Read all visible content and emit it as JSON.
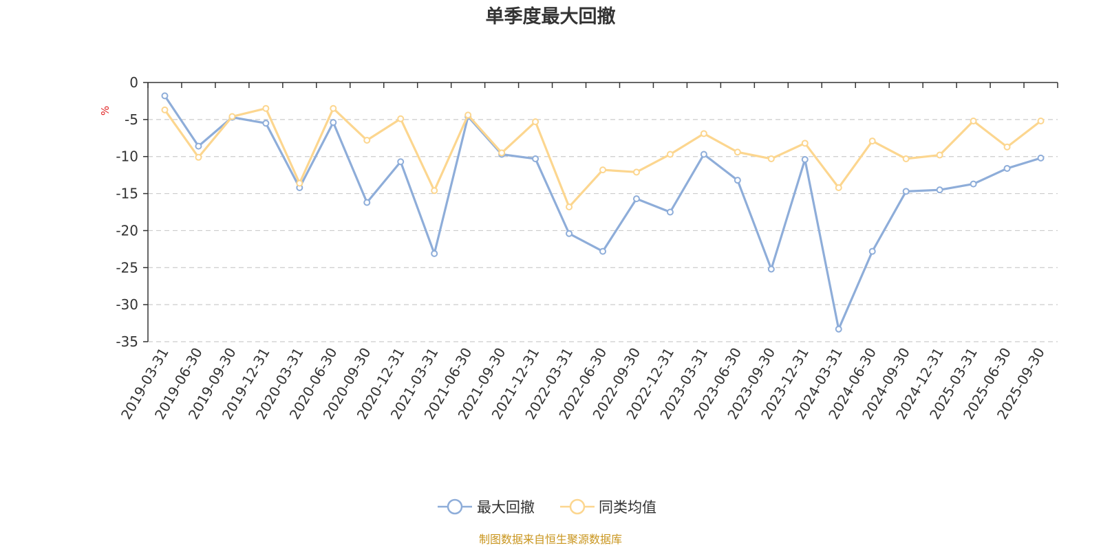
{
  "chart_data": {
    "type": "line",
    "title": "单季度最大回撤",
    "ylabel": "%",
    "xlabel": "",
    "ylim": [
      -35,
      0
    ],
    "yticks": [
      0,
      -5,
      -10,
      -15,
      -20,
      -25,
      -30,
      -35
    ],
    "grid": true,
    "legend_position": "bottom-center",
    "categories": [
      "2019-03-31",
      "2019-06-30",
      "2019-09-30",
      "2019-12-31",
      "2020-03-31",
      "2020-06-30",
      "2020-09-30",
      "2020-12-31",
      "2021-03-31",
      "2021-06-30",
      "2021-09-30",
      "2021-12-31",
      "2022-03-31",
      "2022-06-30",
      "2022-09-30",
      "2022-12-31",
      "2023-03-31",
      "2023-06-30",
      "2023-09-30",
      "2023-12-31",
      "2024-03-31",
      "2024-06-30",
      "2024-09-30",
      "2024-12-31",
      "2025-03-31",
      "2025-06-30",
      "2025-09-30"
    ],
    "series": [
      {
        "name": "最大回撤",
        "color": "#8eadd9",
        "values": [
          -1.8,
          -8.6,
          -4.7,
          -5.5,
          -14.2,
          -5.4,
          -16.2,
          -10.7,
          -23.1,
          -4.6,
          -9.7,
          -10.3,
          -20.4,
          -22.8,
          -15.7,
          -17.5,
          -9.7,
          -13.2,
          -25.2,
          -10.4,
          -33.3,
          -22.8,
          -14.7,
          -14.5,
          -13.7,
          -11.6,
          -10.2
        ]
      },
      {
        "name": "同类均值",
        "color": "#fcd68f",
        "values": [
          -3.7,
          -10.1,
          -4.6,
          -3.5,
          -13.6,
          -3.5,
          -7.8,
          -4.9,
          -14.6,
          -4.4,
          -9.5,
          -5.3,
          -16.8,
          -11.8,
          -12.1,
          -9.7,
          -6.9,
          -9.4,
          -10.3,
          -8.2,
          -14.2,
          -7.9,
          -10.3,
          -9.8,
          -5.2,
          -8.7,
          -5.2
        ]
      }
    ]
  },
  "source": "制图数据来自恒生聚源数据库"
}
